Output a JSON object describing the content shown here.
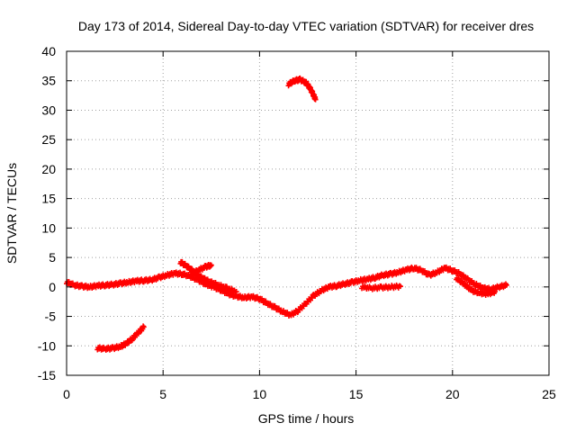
{
  "chart_data": {
    "type": "scatter",
    "title": "Day 173 of 2014, Sidereal Day-to-day VTEC variation (SDTVAR) for receiver dres",
    "xlabel": "GPS time / hours",
    "ylabel": "SDTVAR / TECUs",
    "xlim": [
      0,
      25
    ],
    "ylim": [
      -15,
      40
    ],
    "xticks": [
      0,
      5,
      10,
      15,
      20,
      25
    ],
    "yticks": [
      -15,
      -10,
      -5,
      0,
      5,
      10,
      15,
      20,
      25,
      30,
      35,
      40
    ],
    "grid": true,
    "marker_color": "#ff0000",
    "series": [
      {
        "name": "main trace",
        "points": [
          [
            0.0,
            0.8
          ],
          [
            0.4,
            0.3
          ],
          [
            0.8,
            0.1
          ],
          [
            1.2,
            0.0
          ],
          [
            1.6,
            0.2
          ],
          [
            2.0,
            0.3
          ],
          [
            2.4,
            0.4
          ],
          [
            2.8,
            0.6
          ],
          [
            3.2,
            0.8
          ],
          [
            3.6,
            1.0
          ],
          [
            4.0,
            1.1
          ],
          [
            4.4,
            1.2
          ],
          [
            4.8,
            1.6
          ],
          [
            5.2,
            2.0
          ],
          [
            5.6,
            2.3
          ],
          [
            6.0,
            2.2
          ],
          [
            6.4,
            1.8
          ],
          [
            6.8,
            1.2
          ],
          [
            7.2,
            0.5
          ],
          [
            7.6,
            0.0
          ],
          [
            8.0,
            -0.5
          ],
          [
            8.4,
            -1.2
          ],
          [
            8.8,
            -1.6
          ],
          [
            9.2,
            -1.8
          ],
          [
            9.6,
            -1.7
          ],
          [
            10.0,
            -2.0
          ],
          [
            10.4,
            -2.8
          ],
          [
            10.8,
            -3.5
          ],
          [
            11.2,
            -4.2
          ],
          [
            11.6,
            -4.8
          ],
          [
            12.0,
            -4.0
          ],
          [
            12.4,
            -2.8
          ],
          [
            12.8,
            -1.5
          ],
          [
            13.2,
            -0.6
          ],
          [
            13.6,
            0.0
          ],
          [
            14.0,
            0.2
          ],
          [
            14.4,
            0.5
          ],
          [
            14.8,
            0.8
          ],
          [
            15.2,
            1.1
          ],
          [
            15.6,
            1.3
          ],
          [
            16.0,
            1.6
          ],
          [
            16.4,
            2.0
          ],
          [
            16.8,
            2.2
          ],
          [
            17.2,
            2.5
          ],
          [
            17.6,
            2.9
          ],
          [
            18.0,
            3.2
          ],
          [
            18.4,
            2.8
          ],
          [
            18.8,
            2.0
          ],
          [
            19.2,
            2.5
          ],
          [
            19.6,
            3.2
          ],
          [
            20.0,
            2.8
          ],
          [
            20.4,
            2.2
          ],
          [
            20.8,
            1.2
          ],
          [
            21.2,
            0.4
          ],
          [
            21.6,
            -0.2
          ],
          [
            22.0,
            -0.4
          ],
          [
            22.4,
            0.0
          ],
          [
            22.8,
            0.3
          ]
        ]
      },
      {
        "name": "branch 1",
        "points": [
          [
            5.9,
            4.2
          ],
          [
            6.2,
            3.6
          ],
          [
            6.5,
            2.8
          ],
          [
            6.8,
            2.0
          ],
          [
            7.1,
            1.4
          ],
          [
            7.4,
            0.9
          ],
          [
            7.8,
            0.4
          ],
          [
            8.3,
            -0.2
          ],
          [
            8.8,
            -0.8
          ]
        ]
      },
      {
        "name": "branch 2",
        "points": [
          [
            6.4,
            2.0
          ],
          [
            6.8,
            2.8
          ],
          [
            7.2,
            3.4
          ],
          [
            7.5,
            3.7
          ]
        ]
      },
      {
        "name": "branch 3",
        "points": [
          [
            15.3,
            0.0
          ],
          [
            15.8,
            -0.2
          ],
          [
            16.3,
            -0.1
          ],
          [
            16.8,
            0.0
          ],
          [
            17.3,
            0.1
          ]
        ]
      },
      {
        "name": "branch 4",
        "points": [
          [
            20.2,
            1.5
          ],
          [
            20.6,
            0.5
          ],
          [
            21.0,
            -0.6
          ],
          [
            21.4,
            -1.0
          ],
          [
            21.8,
            -1.2
          ],
          [
            22.2,
            -0.8
          ]
        ]
      },
      {
        "name": "morning arc",
        "points": [
          [
            1.6,
            -10.4
          ],
          [
            2.0,
            -10.5
          ],
          [
            2.4,
            -10.4
          ],
          [
            2.8,
            -10.1
          ],
          [
            3.1,
            -9.6
          ],
          [
            3.4,
            -8.8
          ],
          [
            3.7,
            -7.8
          ],
          [
            4.0,
            -6.8
          ]
        ]
      },
      {
        "name": "midday arc",
        "points": [
          [
            11.5,
            34.4
          ],
          [
            11.8,
            35.0
          ],
          [
            12.1,
            35.2
          ],
          [
            12.4,
            34.7
          ],
          [
            12.6,
            33.8
          ],
          [
            12.8,
            32.6
          ],
          [
            12.9,
            31.8
          ]
        ]
      }
    ]
  }
}
